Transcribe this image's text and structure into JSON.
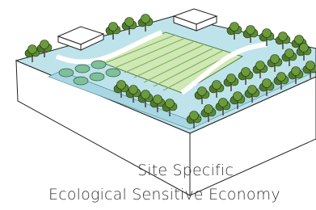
{
  "caption": {
    "line1": "Site Specific",
    "line2": "Ecological Sensitive Economy"
  }
}
